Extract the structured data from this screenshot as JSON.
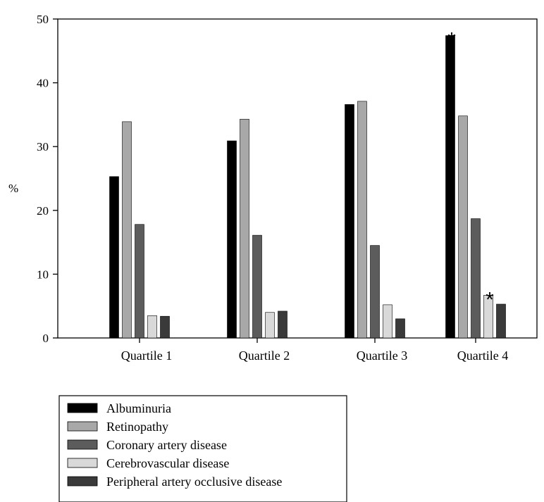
{
  "chart_data": {
    "type": "bar",
    "title": "",
    "xlabel": "",
    "ylabel": "%",
    "ylim": [
      0,
      50
    ],
    "yticks": [
      0,
      10,
      20,
      30,
      40,
      50
    ],
    "grid": false,
    "legend_position": "bottom-left",
    "categories": [
      "Quartile 1",
      "Quartile 2",
      "Quartile 3",
      "Quartile 4"
    ],
    "series": [
      {
        "name": "Albuminuria",
        "color": "#000000",
        "values": [
          25.3,
          30.9,
          36.6,
          47.4
        ]
      },
      {
        "name": "Retinopathy",
        "color": "#a8a8a8",
        "values": [
          33.9,
          34.3,
          37.1,
          34.8
        ]
      },
      {
        "name": "Coronary artery disease",
        "color": "#5c5c5c",
        "values": [
          17.8,
          16.1,
          14.5,
          18.7
        ]
      },
      {
        "name": "Cerebrovascular disease",
        "color": "#d9d9d9",
        "values": [
          3.5,
          4.0,
          5.2,
          6.7
        ]
      },
      {
        "name": "Peripheral artery occlusive disease",
        "color": "#3a3a3a",
        "values": [
          3.4,
          4.2,
          3.0,
          5.3
        ]
      }
    ],
    "annotations": [
      {
        "text": "*",
        "category": "Quartile 4",
        "series": "Albuminuria"
      },
      {
        "text": "*",
        "category": "Quartile 4",
        "series": "Cerebrovascular disease"
      }
    ]
  }
}
